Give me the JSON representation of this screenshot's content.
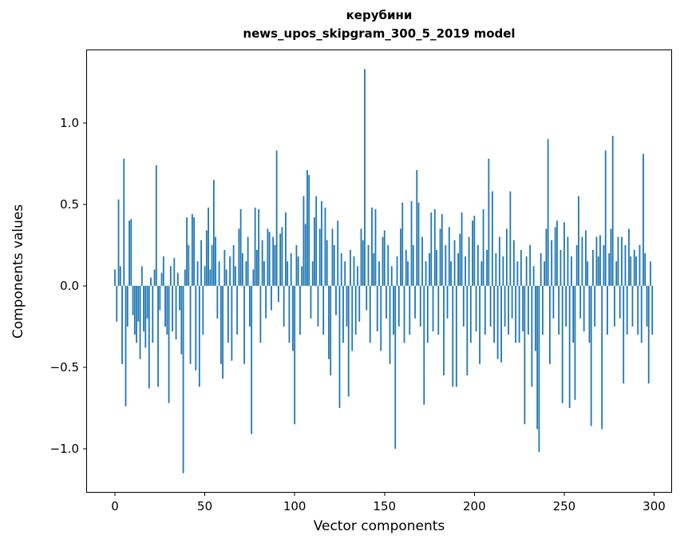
{
  "title": {
    "line1": "керубини",
    "line2": "news_upos_skipgram_300_5_2019 model"
  },
  "chart_data": {
    "type": "bar",
    "title": "керубини\nnews_upos_skipgram_300_5_2019 model",
    "xlabel": "Vector components",
    "ylabel": "Components values",
    "xlim": [
      -16,
      310
    ],
    "ylim": [
      -1.27,
      1.45
    ],
    "x_ticks": [
      0,
      50,
      100,
      150,
      200,
      250,
      300
    ],
    "y_ticks": [
      -1.0,
      -0.5,
      0.0,
      0.5,
      1.0
    ],
    "legend": false,
    "grid": false,
    "bar_color": "#1f77b4",
    "n_components": 300,
    "values": [
      0.1,
      -0.22,
      0.53,
      0.12,
      -0.48,
      0.78,
      -0.74,
      -0.25,
      0.4,
      0.41,
      -0.18,
      -0.3,
      -0.35,
      -0.22,
      -0.45,
      0.12,
      -0.28,
      -0.38,
      -0.2,
      -0.63,
      0.05,
      -0.35,
      0.1,
      0.74,
      -0.62,
      -0.15,
      0.08,
      0.18,
      -0.25,
      -0.3,
      -0.72,
      0.12,
      -0.28,
      0.17,
      -0.33,
      0.08,
      -0.15,
      -0.42,
      -1.15,
      0.1,
      0.42,
      0.25,
      -0.48,
      0.44,
      0.42,
      -0.52,
      0.15,
      -0.62,
      0.28,
      -0.3,
      0.12,
      0.34,
      0.48,
      0.1,
      0.25,
      0.65,
      0.3,
      -0.2,
      0.15,
      -0.48,
      -0.57,
      0.22,
      0.1,
      -0.35,
      0.18,
      -0.46,
      0.25,
      0.12,
      -0.3,
      0.35,
      0.47,
      0.2,
      -0.48,
      0.15,
      0.3,
      -0.25,
      -0.91,
      0.1,
      0.48,
      0.22,
      0.47,
      -0.35,
      0.28,
      0.15,
      -0.2,
      0.35,
      0.33,
      -0.15,
      0.3,
      0.25,
      0.83,
      -0.1,
      0.32,
      0.36,
      -0.25,
      0.45,
      0.15,
      -0.35,
      0.2,
      -0.4,
      -0.85,
      0.25,
      0.18,
      -0.3,
      0.12,
      0.55,
      0.38,
      0.71,
      0.68,
      -0.2,
      0.15,
      0.42,
      0.55,
      -0.25,
      0.35,
      0.52,
      -0.3,
      0.48,
      0.28,
      -0.45,
      -0.55,
      0.35,
      0.25,
      -0.18,
      0.4,
      -0.75,
      0.2,
      -0.35,
      0.15,
      -0.25,
      -0.68,
      0.22,
      -0.4,
      0.18,
      -0.3,
      0.12,
      -0.22,
      0.35,
      0.28,
      1.33,
      -0.15,
      0.25,
      -0.35,
      0.48,
      0.2,
      0.47,
      -0.28,
      0.15,
      -0.4,
      0.3,
      0.34,
      -0.2,
      0.25,
      -0.48,
      0.12,
      -0.3,
      -1.0,
      0.18,
      -0.25,
      0.35,
      0.51,
      -0.35,
      0.22,
      0.15,
      -0.3,
      0.52,
      0.25,
      -0.2,
      0.71,
      0.51,
      -0.25,
      0.3,
      -0.73,
      0.15,
      -0.35,
      0.2,
      0.45,
      -0.28,
      0.47,
      0.22,
      -0.3,
      0.35,
      0.44,
      -0.55,
      0.25,
      -0.2,
      0.36,
      0.15,
      -0.62,
      0.28,
      -0.62,
      0.2,
      0.32,
      0.45,
      -0.25,
      0.18,
      -0.55,
      0.3,
      -0.35,
      0.4,
      0.43,
      -0.28,
      0.25,
      -0.48,
      0.15,
      0.47,
      -0.3,
      0.22,
      0.78,
      -0.25,
      0.58,
      -0.35,
      0.2,
      -0.45,
      0.3,
      -0.47,
      0.18,
      -0.25,
      0.35,
      -0.3,
      0.58,
      -0.2,
      0.28,
      -0.35,
      0.15,
      -0.35,
      0.22,
      -0.28,
      -0.85,
      0.18,
      -0.3,
      0.25,
      -0.62,
      0.12,
      -0.4,
      -0.88,
      -1.02,
      0.2,
      -0.3,
      0.15,
      0.35,
      0.9,
      -0.48,
      0.28,
      -0.2,
      0.36,
      0.4,
      -0.3,
      0.22,
      -0.72,
      0.39,
      -0.25,
      0.3,
      -0.75,
      0.18,
      -0.35,
      -0.7,
      0.25,
      0.55,
      -0.2,
      0.3,
      -0.28,
      0.34,
      0.15,
      -0.35,
      -0.86,
      0.22,
      -0.25,
      0.3,
      0.18,
      0.31,
      -0.88,
      0.25,
      0.83,
      -0.3,
      0.2,
      0.35,
      0.92,
      -0.25,
      0.15,
      0.3,
      -0.2,
      0.3,
      -0.6,
      0.25,
      -0.3,
      0.35,
      0.18,
      -0.25,
      0.22,
      0.18,
      -0.3,
      0.25,
      -0.35,
      0.81,
      0.2,
      -0.25,
      -0.6,
      0.15,
      -0.3
    ]
  }
}
